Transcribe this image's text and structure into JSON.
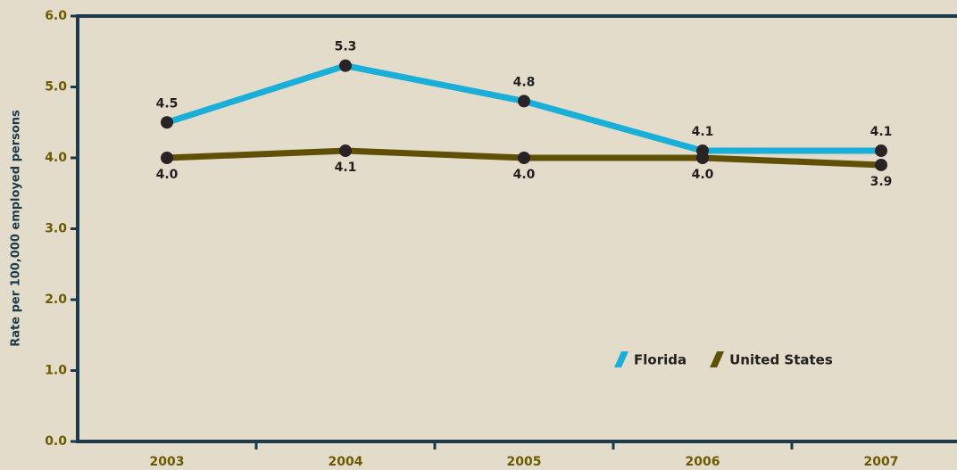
{
  "chart_data": {
    "type": "line",
    "y_label": "Rate per 100,000 employed persons",
    "categories": [
      "2003",
      "2004",
      "2005",
      "2006",
      "2007"
    ],
    "series": [
      {
        "name": "Florida",
        "color": "#1aafd8",
        "values": [
          4.5,
          5.3,
          4.8,
          4.1,
          4.1
        ],
        "value_labels": [
          "4.5",
          "5.3",
          "4.8",
          "4.1",
          "4.1"
        ]
      },
      {
        "name": "United States",
        "color": "#5f5005",
        "values": [
          4.0,
          4.1,
          4.0,
          4.0,
          3.9
        ],
        "value_labels": [
          "4.0",
          "4.1",
          "4.0",
          "4.0",
          "3.9"
        ]
      }
    ],
    "ylim": [
      0,
      6
    ],
    "yticks": [
      {
        "value": 0,
        "label": "0.0"
      },
      {
        "value": 1,
        "label": "1.0"
      },
      {
        "value": 2,
        "label": "2.0"
      },
      {
        "value": 3,
        "label": "3.0"
      },
      {
        "value": 4,
        "label": "4.0"
      },
      {
        "value": 5,
        "label": "5.0"
      },
      {
        "value": 6,
        "label": "6.0"
      }
    ],
    "legend": "lower right"
  }
}
